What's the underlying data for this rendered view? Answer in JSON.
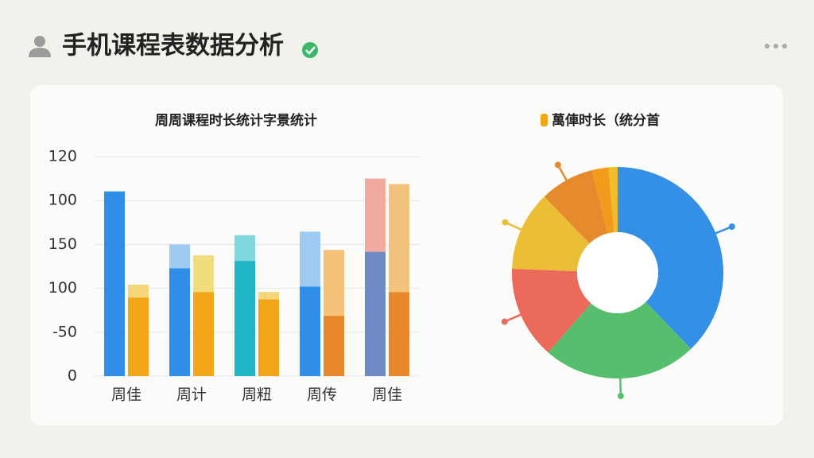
{
  "header": {
    "title": "手机课程表数据分析"
  },
  "chart_data": [
    {
      "type": "bar",
      "title": "周周课程时长统计字景统计",
      "categories": [
        "周佳",
        "周计",
        "周粈",
        "周传",
        "周佳"
      ],
      "series": [
        {
          "stack": 0,
          "colors": [
            "#2f8fe8",
            "#2f8fe8",
            "#1fb5c4",
            "#2f8fe8",
            "#6e8bc4"
          ],
          "values": [
            101,
            59,
            63,
            49,
            68
          ]
        },
        {
          "stack": 0,
          "colors": [
            "#8fc3f2",
            "#9fcbf3",
            "#7fd6dc",
            "#9fcbf3",
            "#f2a99e"
          ],
          "values": [
            0,
            13,
            14,
            30,
            40
          ]
        },
        {
          "stack": 1,
          "colors": [
            "#f2a516",
            "#f2a516",
            "#f2a516",
            "#e8862a",
            "#e8862a"
          ],
          "values": [
            43,
            46,
            42,
            33,
            46
          ]
        },
        {
          "stack": 1,
          "colors": [
            "#f5d77a",
            "#f2dd7e",
            "#f5d77a",
            "#f5c27a",
            "#f3c27c"
          ],
          "values": [
            7,
            20,
            4,
            36,
            59
          ]
        }
      ],
      "ylim": [
        0,
        125
      ],
      "yticks": [
        0,
        {
          "value": 24,
          "label": "-50"
        },
        {
          "value": 48,
          "label": "100"
        },
        {
          "value": 72,
          "label": "150"
        },
        {
          "value": 96,
          "label": "100"
        },
        120
      ],
      "grid": true
    },
    {
      "type": "pie",
      "title": "萬俥时长（统分首",
      "legend_color": "#f2a516",
      "values": [
        37.8,
        23.6,
        14.2,
        12.2,
        8.3,
        2.5,
        1.4
      ],
      "colors": [
        "#3390e6",
        "#55bf6e",
        "#ec6a5a",
        "#eabf35",
        "#e68a2e",
        "#f29a1c",
        "#f2bb2a"
      ],
      "donut": true
    }
  ]
}
